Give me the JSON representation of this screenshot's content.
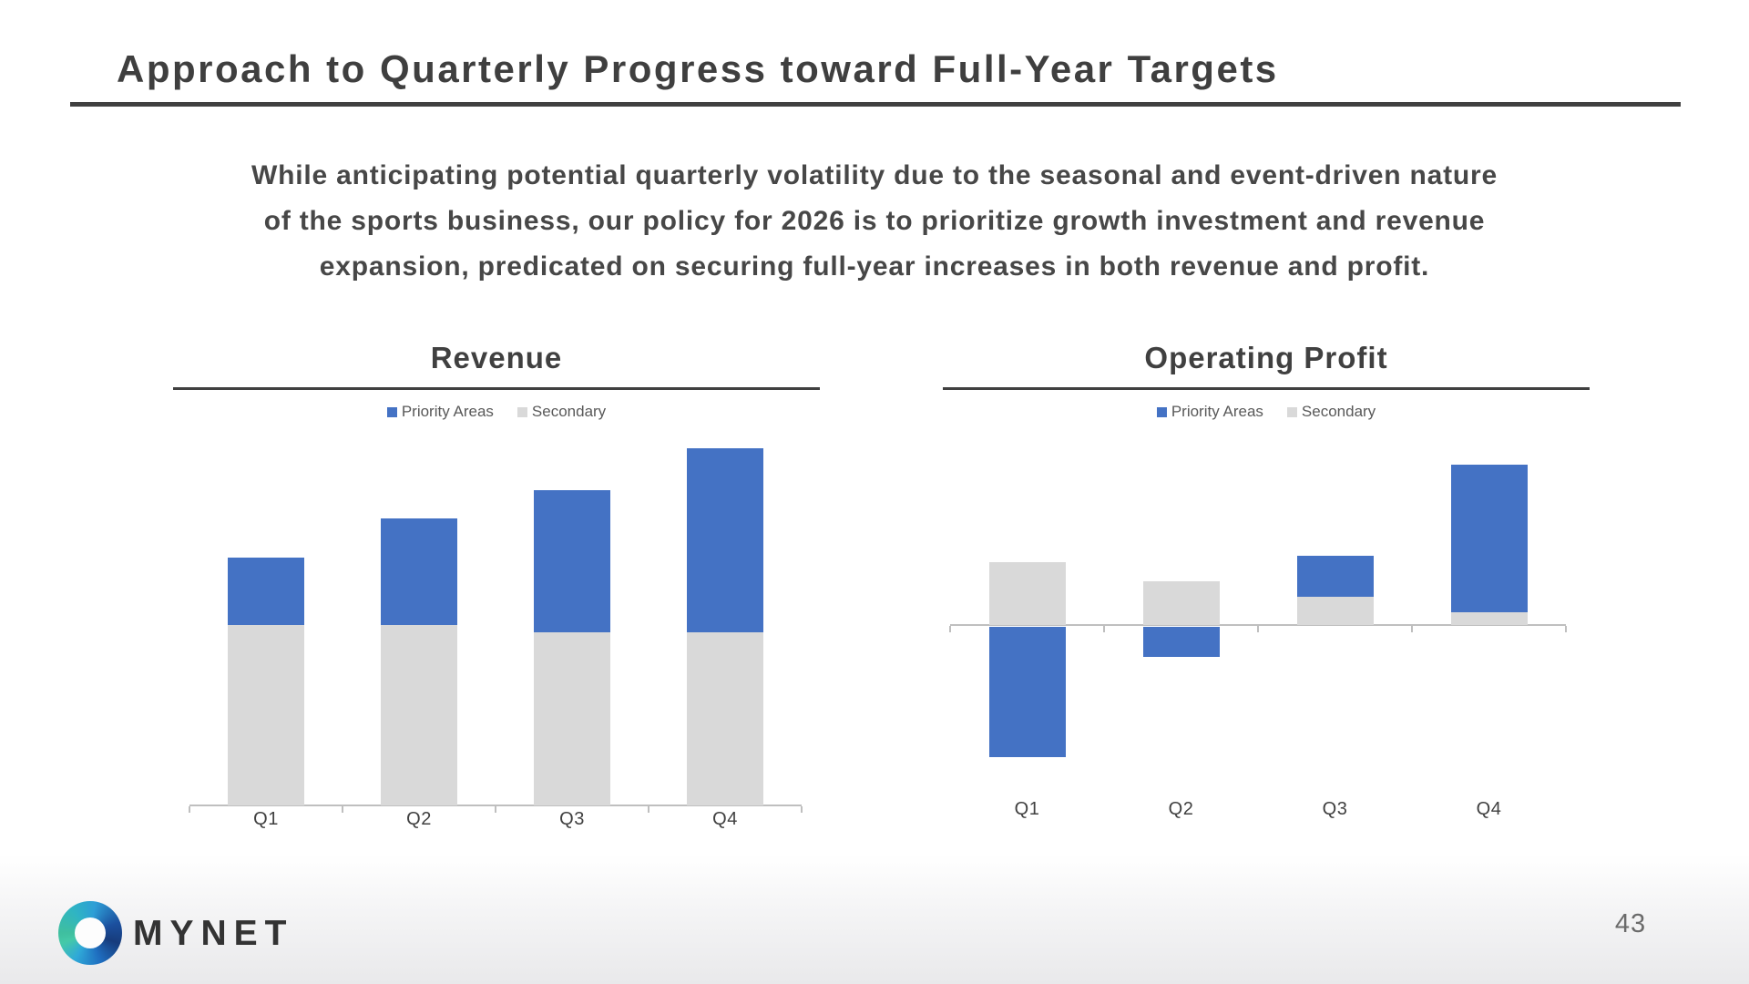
{
  "slide": {
    "title": "Approach to Quarterly Progress toward Full-Year Targets",
    "intro_lines": [
      "While anticipating potential quarterly volatility due to the seasonal and event-driven nature",
      "of the sports business, our policy for 2026 is to prioritize growth investment and revenue",
      "expansion, predicated on securing full-year increases in both revenue and profit."
    ],
    "page_number": "43",
    "brand": "MYNET"
  },
  "colors": {
    "priority_blue": "#4472C4",
    "secondary_gray": "#D9D9D9",
    "underline_dark": "#404040",
    "axis_gray": "#BFBFBF"
  },
  "chart_data": [
    {
      "type": "bar",
      "stacked": true,
      "title": "Revenue",
      "categories": [
        "Q1",
        "Q2",
        "Q3",
        "Q4"
      ],
      "series": [
        {
          "name": "Priority Areas",
          "color": "#4472C4",
          "values": [
            19,
            30,
            40,
            52
          ]
        },
        {
          "name": "Secondary",
          "color": "#D9D9D9",
          "values": [
            51,
            51,
            49,
            49
          ]
        }
      ],
      "stack_order": [
        "Secondary",
        "Priority Areas"
      ],
      "ylim": [
        0,
        104
      ],
      "xlabel": "",
      "ylabel": "",
      "value_axis_labels": "none (relative units, no numeric axis shown)",
      "grid": false,
      "legend_position": "top"
    },
    {
      "type": "bar",
      "stacked": true,
      "title": "Operating Profit",
      "categories": [
        "Q1",
        "Q2",
        "Q3",
        "Q4"
      ],
      "series": [
        {
          "name": "Priority Areas",
          "color": "#4472C4",
          "values": [
            -88,
            -20,
            28,
            100
          ]
        },
        {
          "name": "Secondary",
          "color": "#D9D9D9",
          "values": [
            43,
            30,
            19,
            9
          ]
        }
      ],
      "stack_order": [
        "Secondary",
        "Priority Areas"
      ],
      "ylim": [
        -95,
        115
      ],
      "xlabel": "",
      "ylabel": "",
      "value_axis_labels": "none (relative units, no numeric axis shown)",
      "grid": false,
      "legend_position": "top"
    }
  ]
}
